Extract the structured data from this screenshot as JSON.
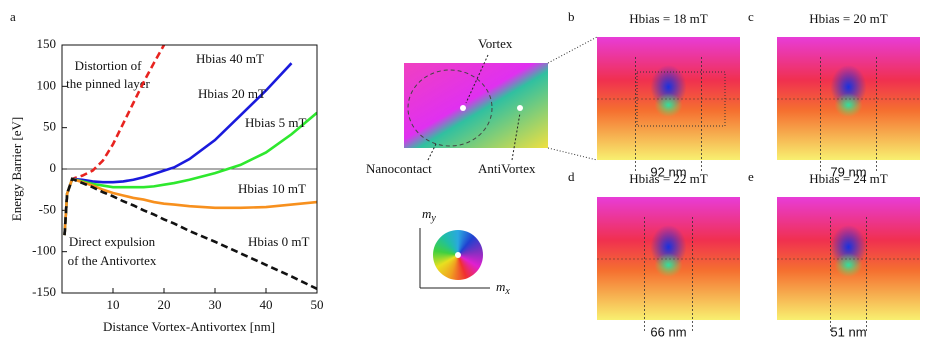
{
  "chart_data": {
    "type": "line",
    "panel": "a",
    "xlabel": "Distance Vortex-Antivortex [nm]",
    "ylabel": "Energy Barrier [eV]",
    "xlim": [
      0,
      50
    ],
    "ylim": [
      -150,
      150
    ],
    "xticks": [
      10,
      20,
      30,
      40,
      50
    ],
    "yticks": [
      150,
      100,
      50,
      0,
      -50,
      -100,
      -150
    ],
    "zero_line": true,
    "annotations": [
      "Distortion of",
      "the pinned layer",
      "Direct expulsion",
      "of the Antivortex"
    ],
    "x": [
      0.5,
      1,
      2,
      4,
      6,
      8,
      10,
      12,
      14,
      16,
      18,
      20,
      22,
      25,
      30,
      35,
      40,
      45,
      50
    ],
    "series": [
      {
        "name": "Hbias 40 mT",
        "color": "#e8231f",
        "dashed": true,
        "values": [
          -80,
          -30,
          -12,
          -8,
          -2,
          10,
          30,
          55,
          80,
          105,
          128,
          150,
          null,
          null,
          null,
          null,
          null,
          null,
          null
        ]
      },
      {
        "name": "Hbias 20 mT",
        "color": "#1a1adc",
        "dashed": false,
        "values": [
          -80,
          -30,
          -12,
          -13,
          -15,
          -16,
          -16,
          -15,
          -13,
          -10,
          -6,
          -2,
          2,
          12,
          35,
          65,
          95,
          128,
          null
        ]
      },
      {
        "name": "Hbias 5 mT",
        "color": "#2ee82e",
        "dashed": false,
        "values": [
          -80,
          -30,
          -12,
          -15,
          -18,
          -20,
          -22,
          -22,
          -22,
          -22,
          -21,
          -19,
          -17,
          -13,
          -5,
          5,
          20,
          42,
          68
        ]
      },
      {
        "name": "Hbias 10 mT",
        "color": "#f7901e",
        "dashed": false,
        "values": [
          -80,
          -30,
          -12,
          -16,
          -20,
          -25,
          -29,
          -32,
          -35,
          -37,
          -40,
          -42,
          -43,
          -45,
          -47,
          -47,
          -46,
          -43,
          -40
        ]
      },
      {
        "name": "Hbias 0 mT",
        "color": "#111111",
        "dashed": true,
        "values": [
          -80,
          -30,
          -12,
          -17,
          -22,
          -28,
          -33,
          -39,
          -44,
          -50,
          -55,
          -61,
          -66,
          -75,
          -88,
          -102,
          -116,
          -130,
          -145
        ]
      }
    ]
  },
  "diagram": {
    "vortex": "Vortex",
    "antivortex": "AntiVortex",
    "nanocontact": "Nanocontact",
    "my": "m",
    "my_sub": "y",
    "mx": "m",
    "mx_sub": "x"
  },
  "panels": [
    {
      "letter": "b",
      "title": "Hbias = 18 mT",
      "distance": "92 nm"
    },
    {
      "letter": "c",
      "title": "Hbias = 20 mT",
      "distance": "79 nm"
    },
    {
      "letter": "d",
      "title": "Hbias = 22 mT",
      "distance": "66 nm"
    },
    {
      "letter": "e",
      "title": "Hbias = 24 mT",
      "distance": "51 nm"
    }
  ]
}
